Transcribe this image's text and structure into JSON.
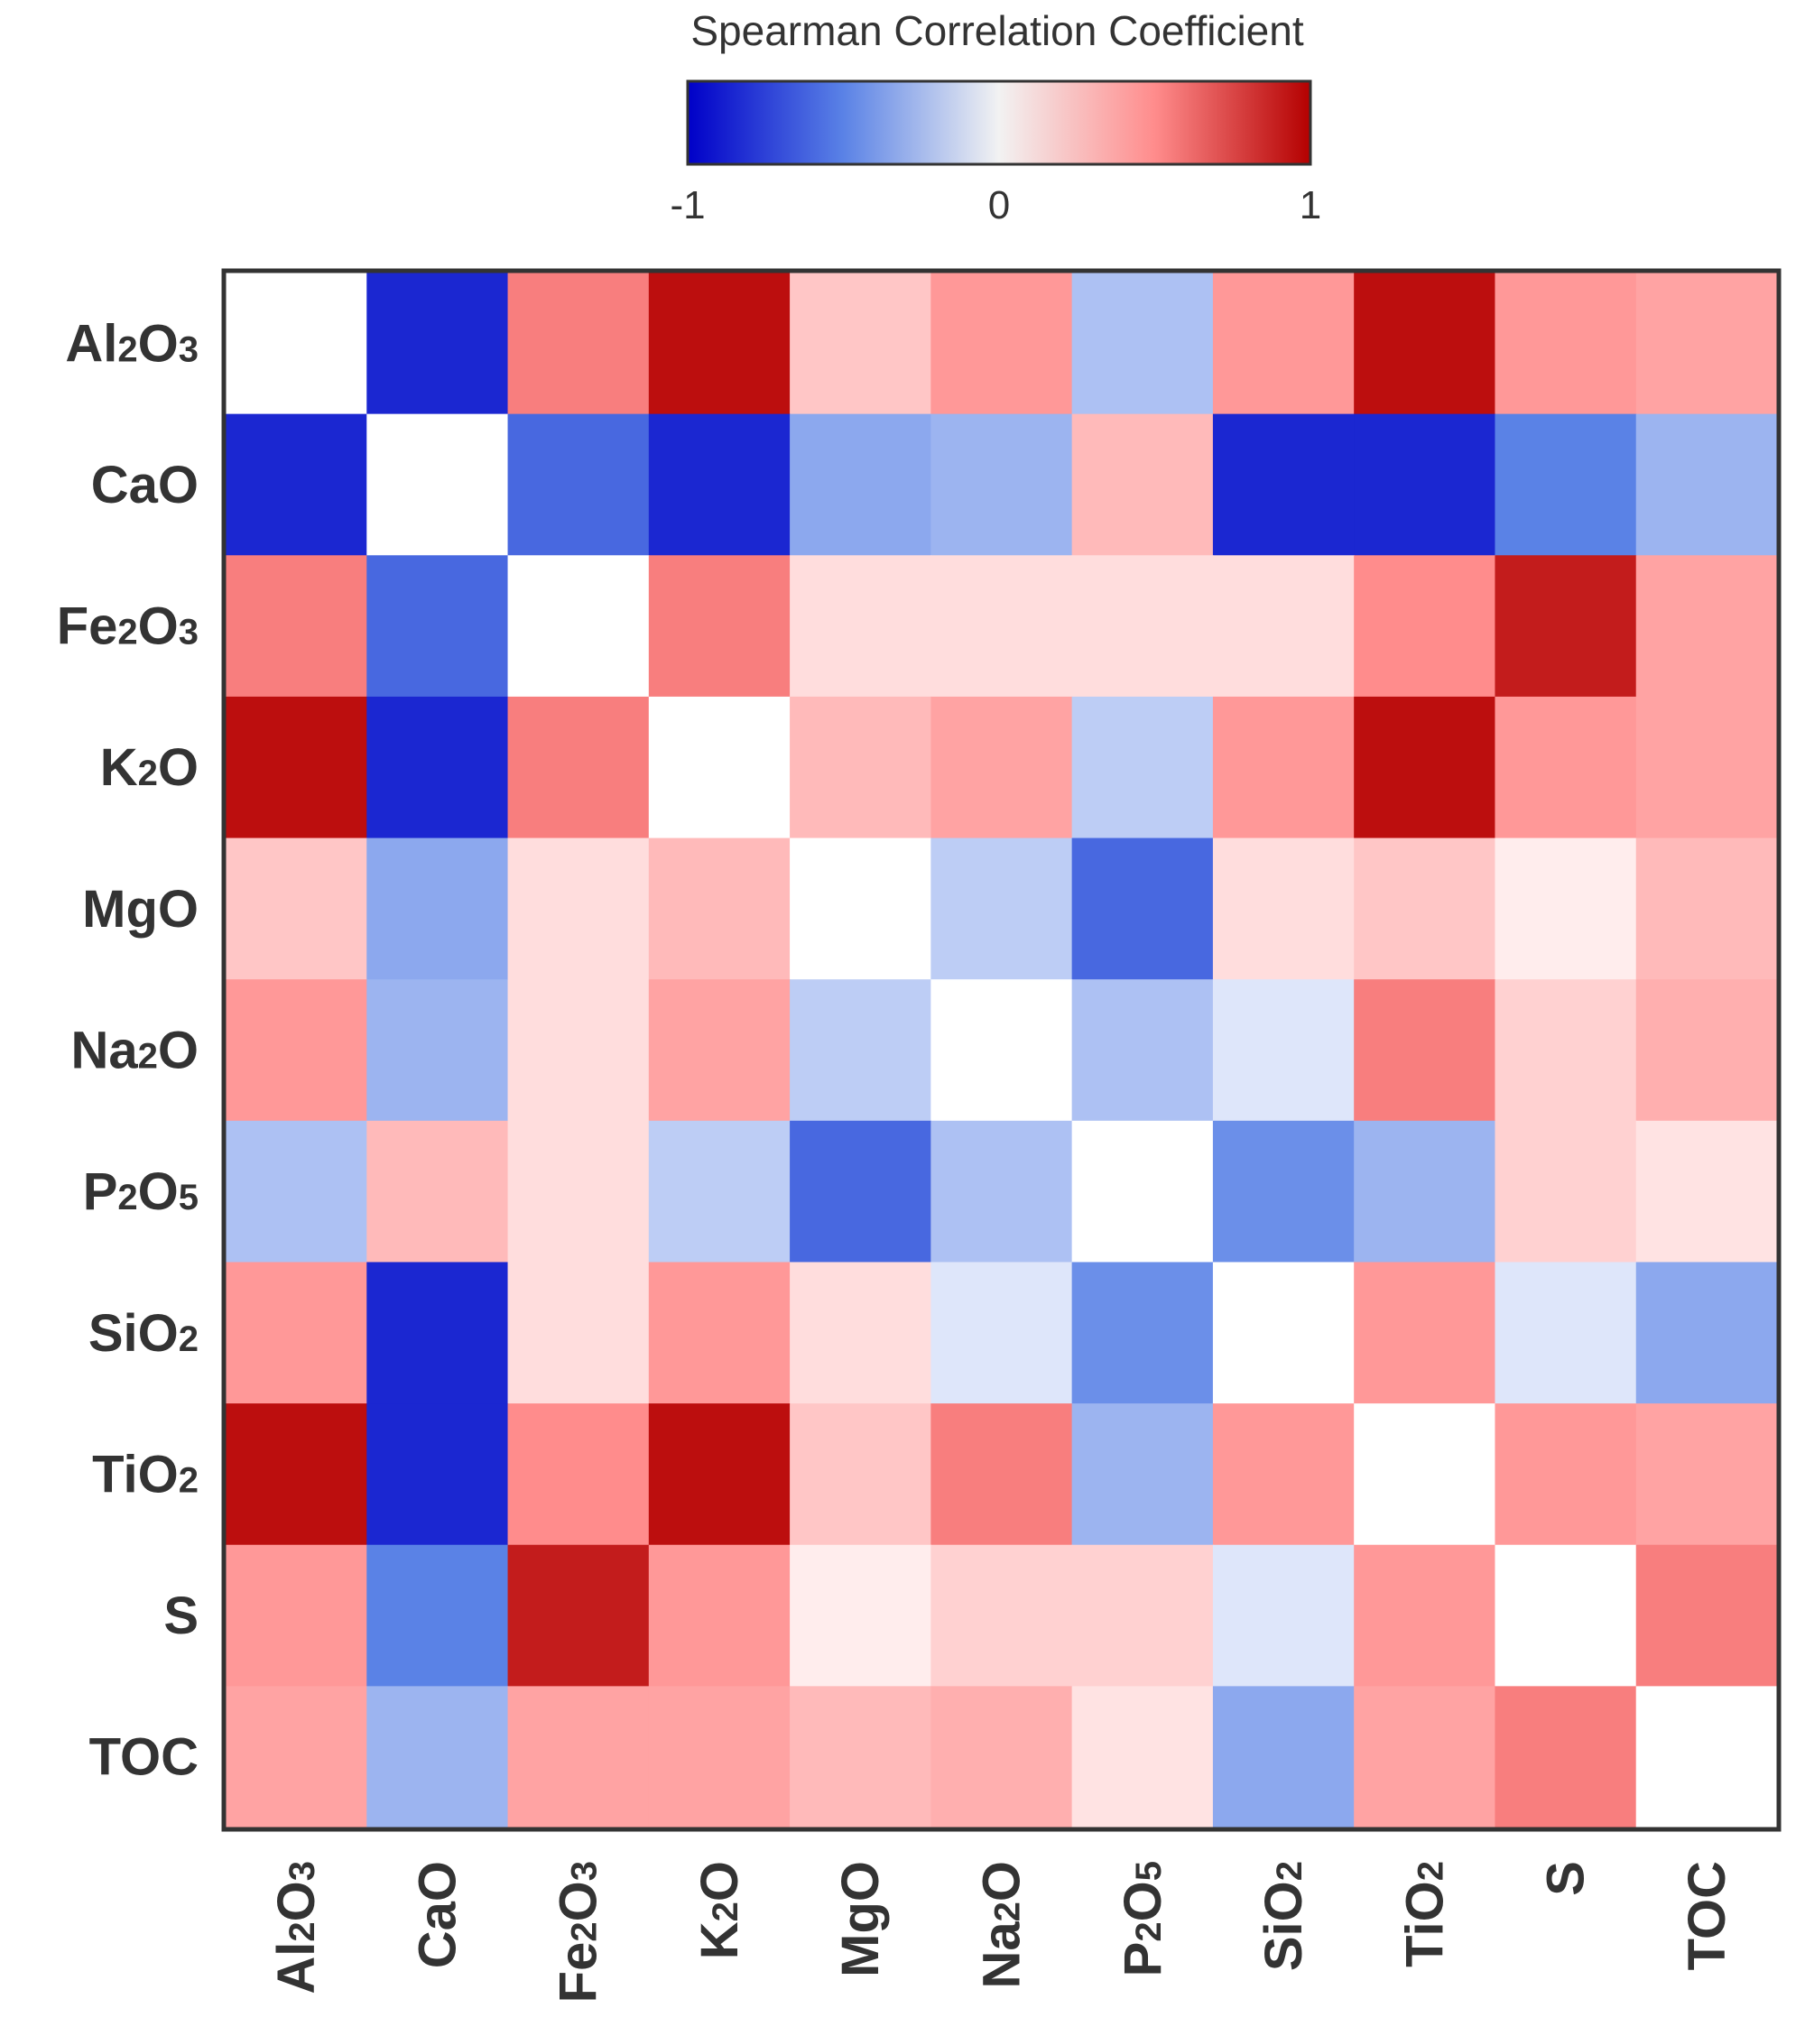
{
  "chart_data": {
    "type": "heatmap",
    "colorbar": {
      "title": "Spearman Correlation Coefficient",
      "ticks": [
        "-1",
        "0",
        "1"
      ],
      "range": [
        -1,
        1
      ],
      "colors": {
        "low": "#0000c8",
        "mid": "#f2f2f2",
        "high": "#b40000"
      }
    },
    "row_labels": [
      {
        "main": "Al",
        "sub": "2",
        "tail": "O",
        "sub2": "3"
      },
      {
        "main": "CaO"
      },
      {
        "main": "Fe",
        "sub": "2",
        "tail": "O",
        "sub2": "3"
      },
      {
        "main": "K",
        "sub": "2",
        "tail": "O"
      },
      {
        "main": "MgO"
      },
      {
        "main": "Na",
        "sub": "2",
        "tail": "O"
      },
      {
        "main": "P",
        "sub": "2",
        "tail": "O",
        "sub2": "5"
      },
      {
        "main": "SiO",
        "sub": "2"
      },
      {
        "main": "TiO",
        "sub": "2"
      },
      {
        "main": "S"
      },
      {
        "main": "TOC"
      }
    ],
    "col_labels": [
      {
        "main": "Al",
        "sub": "2",
        "tail": "O",
        "sub2": "3"
      },
      {
        "main": "CaO"
      },
      {
        "main": "Fe",
        "sub": "2",
        "tail": "O",
        "sub2": "3"
      },
      {
        "main": "K",
        "sub": "2",
        "tail": "O"
      },
      {
        "main": "MgO"
      },
      {
        "main": "Na",
        "sub": "2",
        "tail": "O"
      },
      {
        "main": "P",
        "sub": "2",
        "tail": "O",
        "sub2": "5"
      },
      {
        "main": "SiO",
        "sub": "2"
      },
      {
        "main": "TiO",
        "sub": "2"
      },
      {
        "main": "S"
      },
      {
        "main": "TOC"
      }
    ],
    "values": [
      [
        0.0,
        -0.85,
        0.55,
        0.95,
        0.25,
        0.45,
        -0.25,
        0.45,
        0.95,
        0.45,
        0.4
      ],
      [
        -0.85,
        0.0,
        -0.6,
        -0.85,
        -0.35,
        -0.3,
        0.3,
        -0.85,
        -0.85,
        -0.5,
        -0.3
      ],
      [
        0.55,
        -0.6,
        0.0,
        0.55,
        0.15,
        0.15,
        0.15,
        0.15,
        0.5,
        0.9,
        0.4
      ],
      [
        0.95,
        -0.85,
        0.55,
        0.0,
        0.3,
        0.4,
        -0.2,
        0.45,
        0.95,
        0.45,
        0.4
      ],
      [
        0.25,
        -0.35,
        0.15,
        0.3,
        0.0,
        -0.2,
        -0.6,
        0.15,
        0.25,
        0.08,
        0.3
      ],
      [
        0.45,
        -0.3,
        0.15,
        0.4,
        -0.2,
        0.0,
        -0.25,
        -0.1,
        0.55,
        0.2,
        0.35
      ],
      [
        -0.25,
        0.3,
        0.15,
        -0.2,
        -0.6,
        -0.25,
        0.0,
        -0.45,
        -0.3,
        0.2,
        0.12
      ],
      [
        0.45,
        -0.85,
        0.15,
        0.45,
        0.15,
        -0.1,
        -0.45,
        0.0,
        0.45,
        -0.1,
        -0.35
      ],
      [
        0.95,
        -0.85,
        0.5,
        0.95,
        0.25,
        0.55,
        -0.3,
        0.45,
        0.0,
        0.45,
        0.4
      ],
      [
        0.45,
        -0.5,
        0.9,
        0.45,
        0.08,
        0.2,
        0.2,
        -0.1,
        0.45,
        0.0,
        0.55
      ],
      [
        0.4,
        -0.3,
        0.4,
        0.4,
        0.3,
        0.35,
        0.12,
        -0.35,
        0.4,
        0.55,
        0.0
      ]
    ]
  }
}
